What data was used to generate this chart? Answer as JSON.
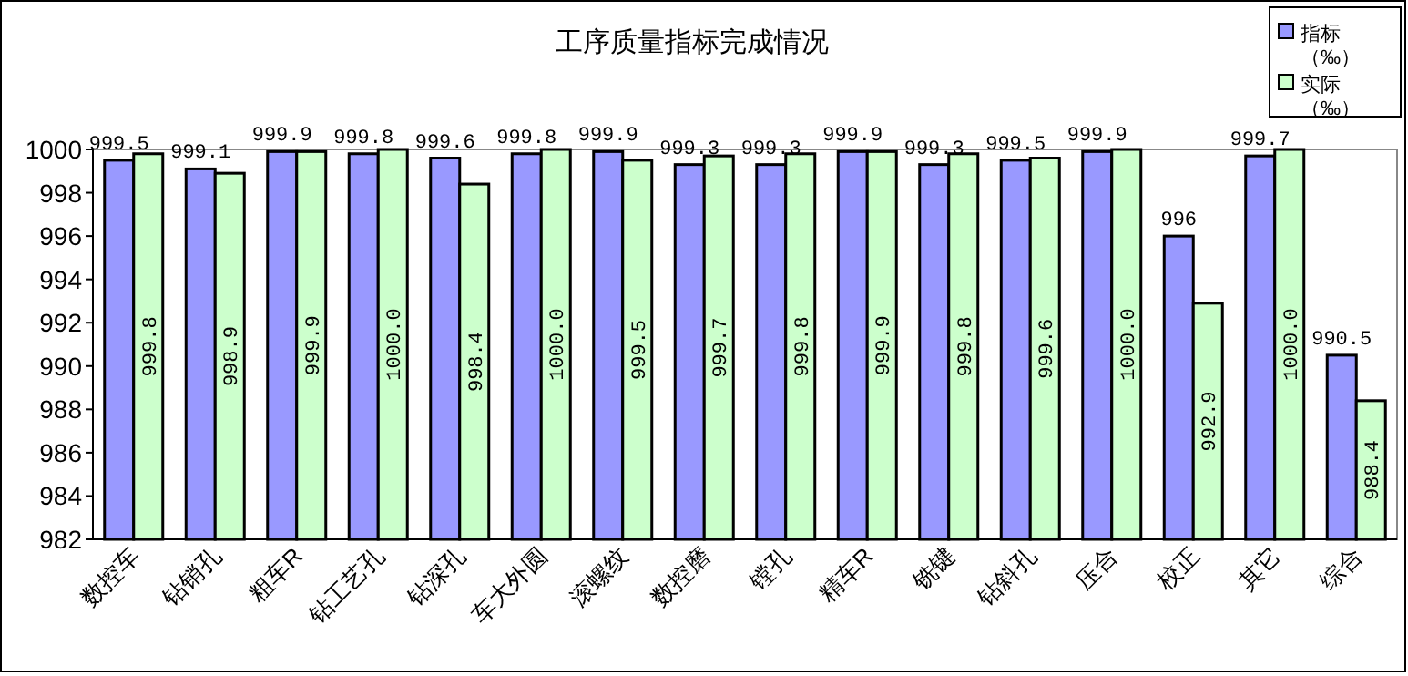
{
  "chart_data": {
    "type": "bar",
    "title": "工序质量指标完成情况",
    "categories": [
      "数控车",
      "钻销孔",
      "粗车R",
      "钻工艺孔",
      "钻深孔",
      "车大外圆",
      "滚螺纹",
      "数控磨",
      "镗孔",
      "精车R",
      "铣键",
      "钻斜孔",
      "压合",
      "校正",
      "其它",
      "综合"
    ],
    "series": [
      {
        "name": "指标（‰）",
        "color": "#9999ff",
        "values": [
          999.5,
          999.1,
          999.9,
          999.8,
          999.6,
          999.8,
          999.9,
          999.3,
          999.3,
          999.9,
          999.3,
          999.5,
          999.9,
          996,
          999.7,
          990.5
        ],
        "value_labels": [
          "999.5",
          "999.1",
          "999.9",
          "999.8",
          "999.6",
          "999.8",
          "999.9",
          "999.3",
          "999.3",
          "999.9",
          "999.3",
          "999.5",
          "999.9",
          "996",
          "999.7",
          "990.5"
        ]
      },
      {
        "name": "实际（‰）",
        "color": "#ccffcc",
        "values": [
          999.8,
          998.9,
          999.9,
          1000.0,
          998.4,
          1000.0,
          999.5,
          999.7,
          999.8,
          999.9,
          999.8,
          999.6,
          1000.0,
          992.9,
          1000.0,
          988.4
        ],
        "value_labels": [
          "999.8",
          "998.9",
          "999.9",
          "1000.0",
          "998.4",
          "1000.0",
          "999.5",
          "999.7",
          "999.8",
          "999.9",
          "999.8",
          "999.6",
          "1000.0",
          "992.9",
          "1000.0",
          "988.4"
        ]
      }
    ],
    "ylim": [
      982,
      1000
    ],
    "yticks": [
      982,
      984,
      986,
      988,
      990,
      992,
      994,
      996,
      998,
      1000
    ],
    "grid": false,
    "legend": "top right"
  }
}
